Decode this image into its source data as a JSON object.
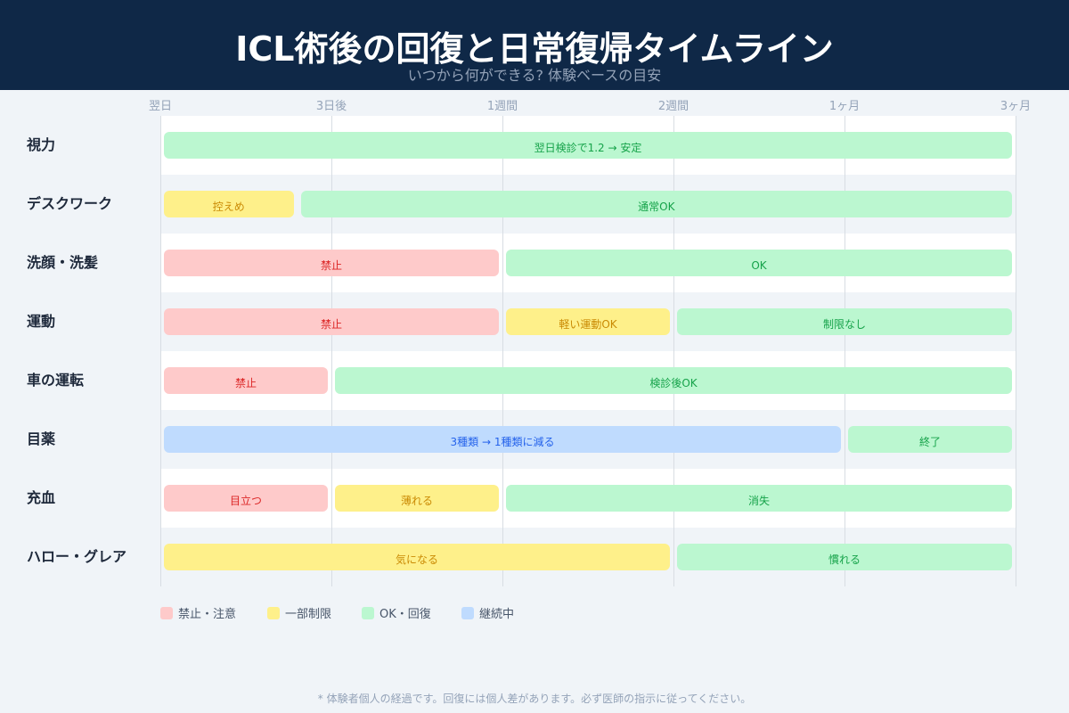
{
  "header": {
    "title": "ICL術後の回復と日常復帰タイムライン",
    "subtitle": "いつから何ができる? 体験ベースの目安"
  },
  "axis": {
    "ticks": [
      "翌日",
      "3日後",
      "1週間",
      "2週間",
      "1ヶ月",
      "3ヶ月"
    ]
  },
  "colors": {
    "red": {
      "bg": "#fecaca",
      "fg": "#dc2626"
    },
    "yellow": {
      "bg": "#fef08a",
      "fg": "#ca8a04"
    },
    "green": {
      "bg": "#bbf7d0",
      "fg": "#16a34a"
    },
    "blue": {
      "bg": "#bfdbfe",
      "fg": "#2563eb"
    }
  },
  "rows": [
    {
      "label": "視力",
      "segments": [
        {
          "start": 0,
          "end": 5,
          "status": "green",
          "text": "翌日検診で1.2 → 安定"
        }
      ]
    },
    {
      "label": "デスクワーク",
      "segments": [
        {
          "start": 0,
          "end": 0.8,
          "status": "yellow",
          "text": "控えめ"
        },
        {
          "start": 0.8,
          "end": 5,
          "status": "green",
          "text": "通常OK"
        }
      ]
    },
    {
      "label": "洗顔・洗髪",
      "segments": [
        {
          "start": 0,
          "end": 2,
          "status": "red",
          "text": "禁止"
        },
        {
          "start": 2,
          "end": 5,
          "status": "green",
          "text": "OK"
        }
      ]
    },
    {
      "label": "運動",
      "segments": [
        {
          "start": 0,
          "end": 2,
          "status": "red",
          "text": "禁止"
        },
        {
          "start": 2,
          "end": 3,
          "status": "yellow",
          "text": "軽い運動OK"
        },
        {
          "start": 3,
          "end": 5,
          "status": "green",
          "text": "制限なし"
        }
      ]
    },
    {
      "label": "車の運転",
      "segments": [
        {
          "start": 0,
          "end": 1,
          "status": "red",
          "text": "禁止"
        },
        {
          "start": 1,
          "end": 5,
          "status": "green",
          "text": "検診後OK"
        }
      ]
    },
    {
      "label": "目薬",
      "segments": [
        {
          "start": 0,
          "end": 4,
          "status": "blue",
          "text": "3種類 → 1種類に減る"
        },
        {
          "start": 4,
          "end": 5,
          "status": "green",
          "text": "終了"
        }
      ]
    },
    {
      "label": "充血",
      "segments": [
        {
          "start": 0,
          "end": 1,
          "status": "red",
          "text": "目立つ"
        },
        {
          "start": 1,
          "end": 2,
          "status": "yellow",
          "text": "薄れる"
        },
        {
          "start": 2,
          "end": 5,
          "status": "green",
          "text": "消失"
        }
      ]
    },
    {
      "label": "ハロー・グレア",
      "segments": [
        {
          "start": 0,
          "end": 3,
          "status": "yellow",
          "text": "気になる"
        },
        {
          "start": 3,
          "end": 5,
          "status": "green",
          "text": "慣れる"
        }
      ]
    }
  ],
  "legend": [
    {
      "status": "red",
      "label": "禁止・注意"
    },
    {
      "status": "yellow",
      "label": "一部制限"
    },
    {
      "status": "green",
      "label": "OK・回復"
    },
    {
      "status": "blue",
      "label": "継続中"
    }
  ],
  "footnote": "* 体験者個人の経過です。回復には個人差があります。必ず医師の指示に従ってください。"
}
